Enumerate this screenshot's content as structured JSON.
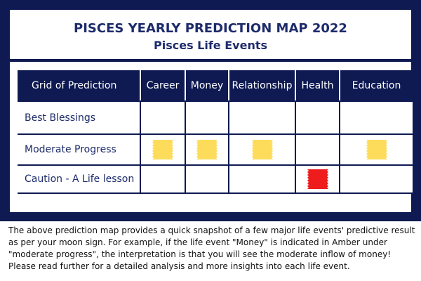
{
  "title": "PISCES YEARLY PREDICTION MAP 2022",
  "subtitle": "Pisces Life Events",
  "grid": {
    "corner_label": "Grid of Prediction",
    "columns": [
      "Career",
      "Money",
      "Relationship",
      "Health",
      "Education"
    ],
    "rows": [
      {
        "label": "Best Blessings",
        "markers": [
          null,
          null,
          null,
          null,
          null
        ]
      },
      {
        "label": "Moderate Progress",
        "markers": [
          "amber",
          "amber",
          "amber",
          null,
          "amber"
        ]
      },
      {
        "label": "Caution - A Life lesson",
        "markers": [
          null,
          null,
          null,
          "red",
          null
        ]
      }
    ],
    "colors": {
      "amber": "#fddc5c",
      "red": "#ee1c1c",
      "navy": "#0f1a52"
    }
  },
  "description": "The above prediction map provides a quick snapshot of a few major life events' predictive result as per your moon sign. For example, if the life event \"Money\" is indicated in Amber under \"moderate progress\", the interpretation is that you will see the moderate inflow of money! Please read further for a detailed analysis and more insights into each life event."
}
